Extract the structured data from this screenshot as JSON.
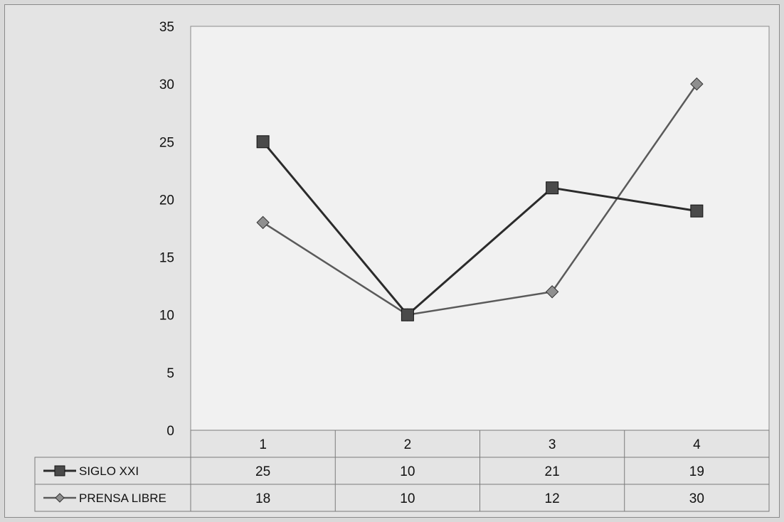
{
  "chart_data": {
    "type": "line",
    "title": "",
    "xlabel": "",
    "ylabel": "",
    "categories": [
      "1",
      "2",
      "3",
      "4"
    ],
    "ylim": [
      0,
      35
    ],
    "yticks": [
      0,
      5,
      10,
      15,
      20,
      25,
      30,
      35
    ],
    "grid": "horizontal dotted lines",
    "legend_placement": "data table below plot",
    "series": [
      {
        "name": "SIGLO XXI",
        "values": [
          25,
          10,
          21,
          19
        ],
        "marker": "square",
        "color": "#2b2b2b"
      },
      {
        "name": "PRENSA LIBRE",
        "values": [
          18,
          10,
          12,
          30
        ],
        "marker": "diamond",
        "color": "#5a5a5a"
      }
    ]
  }
}
